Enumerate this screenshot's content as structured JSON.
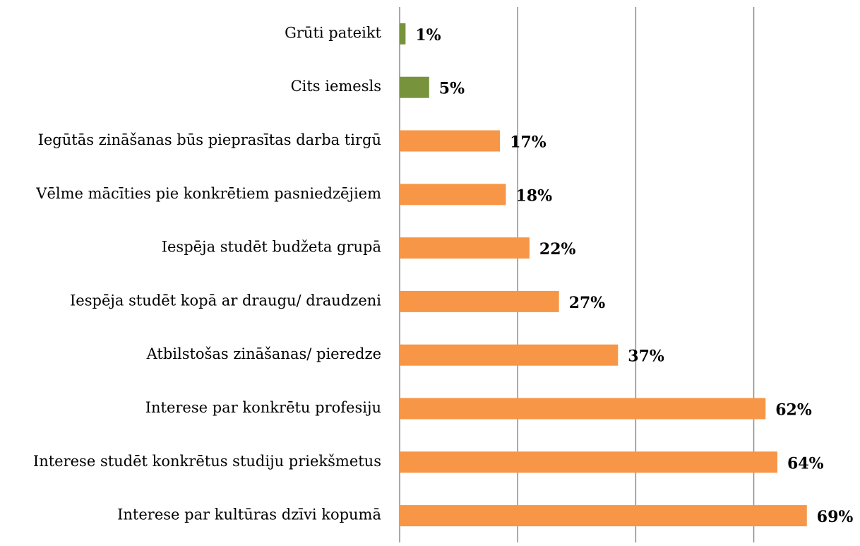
{
  "chart_data": {
    "type": "bar",
    "orientation": "horizontal",
    "categories": [
      "Grūti pateikt",
      "Cits iemesls",
      "Iegūtās zināšanas būs pieprasītas darba tirgū",
      "Vēlme mācīties pie konkrētiem pasniedzējiem",
      "Iespēja studēt budžeta grupā",
      "Iespēja studēt kopā ar draugu/ draudzeni",
      "Atbilstošas zināšanas/ pieredze",
      "Interese par konkrētu profesiju",
      "Interese studēt konkrētus studiju priekšmetus",
      "Interese par kultūras dzīvi kopumā"
    ],
    "values": [
      1,
      5,
      17,
      18,
      22,
      27,
      37,
      62,
      64,
      69
    ],
    "value_labels": [
      "1%",
      "5%",
      "17%",
      "18%",
      "22%",
      "27%",
      "37%",
      "62%",
      "64%",
      "69%"
    ],
    "colors": [
      "#77933c",
      "#77933c",
      "#f79646",
      "#f79646",
      "#f79646",
      "#f79646",
      "#f79646",
      "#f79646",
      "#f79646",
      "#f79646"
    ],
    "xlim": [
      0,
      78
    ],
    "xticks": [
      0,
      20,
      40,
      60
    ],
    "grid": true
  }
}
